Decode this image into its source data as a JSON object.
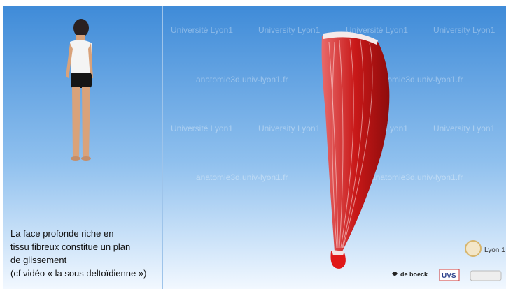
{
  "watermarks": [
    [
      "Université Lyon1",
      "University Lyon1",
      "Université Lyon1",
      "University Lyon1"
    ],
    [
      "anatomie3d.univ-lyon1.fr",
      "anatomie3d.univ-lyon1.fr"
    ],
    [
      "Université Lyon1",
      "University Lyon1",
      "Université Lyon1",
      "University Lyon1"
    ],
    [
      "anatomie3d.univ-lyon1.fr",
      "anatomie3d.univ-lyon1.fr"
    ]
  ],
  "caption": {
    "lines": [
      "La face profonde riche en",
      "tissu fibreux constitue un plan",
      "de glissement"
    ],
    "note": "(cf vidéo « la sous deltoïdienne »)"
  },
  "logos": {
    "university": "Lyon 1",
    "publisher": "de boeck",
    "uvs": "UVS"
  }
}
